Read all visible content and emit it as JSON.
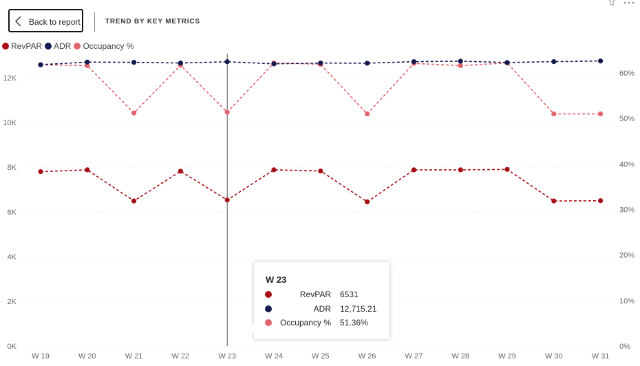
{
  "header": {
    "back_label": "Back to report",
    "title": "TREND BY KEY METRICS"
  },
  "colors": {
    "revpar": "#a50f15",
    "adr": "#141a4d",
    "occupancy": "#e0656e",
    "grid": "#e6e6e6"
  },
  "legend": {
    "items": [
      {
        "label": "RevPAR",
        "color": "#a50f15"
      },
      {
        "label": "ADR",
        "color": "#141a4d"
      },
      {
        "label": "Occupancy %",
        "color": "#e0656e"
      }
    ]
  },
  "chart_data": {
    "type": "line",
    "categories": [
      "W 19",
      "W 20",
      "W 21",
      "W 22",
      "W 23",
      "W 24",
      "W 25",
      "W 26",
      "W 27",
      "W 28",
      "W 29",
      "W 30",
      "W 31"
    ],
    "series": [
      {
        "name": "RevPAR",
        "axis": "left",
        "color": "#a50f15",
        "values": [
          7800,
          7880,
          6490,
          7820,
          6531,
          7880,
          7830,
          6450,
          7880,
          7880,
          7900,
          6490,
          6500
        ]
      },
      {
        "name": "ADR",
        "axis": "left",
        "color": "#141a4d",
        "values": [
          12580,
          12700,
          12690,
          12660,
          12715.21,
          12620,
          12660,
          12650,
          12720,
          12740,
          12680,
          12720,
          12750
        ]
      },
      {
        "name": "Occupancy %",
        "axis": "right",
        "color": "#e0656e",
        "values": [
          61.8,
          61.6,
          51.2,
          61.7,
          51.36,
          62.2,
          61.9,
          51.0,
          62.1,
          61.6,
          62.2,
          51.0,
          51.0
        ]
      }
    ],
    "y_left": {
      "ticks": [
        "0K",
        "2K",
        "4K",
        "6K",
        "8K",
        "10K",
        "12K"
      ],
      "ylim": [
        0,
        12000
      ]
    },
    "y_right": {
      "ticks": [
        "0%",
        "10%",
        "20%",
        "30%",
        "40%",
        "50%",
        "60%"
      ],
      "ylim": [
        0,
        60
      ]
    },
    "grid": true,
    "legend_position": "top-left",
    "highlight_category": "W 23"
  },
  "tooltip": {
    "title": "W 23",
    "rows": [
      {
        "name": "RevPAR",
        "value": "6531",
        "color": "#a50f15"
      },
      {
        "name": "ADR",
        "value": "12,715.21",
        "color": "#141a4d"
      },
      {
        "name": "Occupancy %",
        "value": "51.36%",
        "color": "#e0656e"
      }
    ]
  }
}
